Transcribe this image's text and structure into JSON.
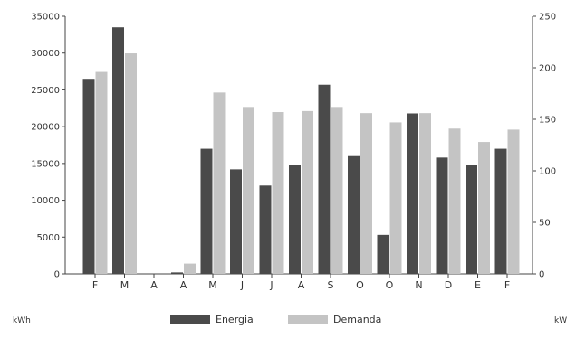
{
  "chart_data": {
    "type": "bar",
    "categories": [
      "F",
      "M",
      "A",
      "A",
      "M",
      "J",
      "J",
      "A",
      "S",
      "O",
      "O",
      "N",
      "D",
      "E",
      "F"
    ],
    "series": [
      {
        "name": "Energia",
        "axis": "left",
        "color": "#4a4a4a",
        "values": [
          26500,
          33500,
          0,
          200,
          17000,
          14200,
          12000,
          14800,
          25700,
          16000,
          5300,
          21800,
          15800,
          14800,
          17000
        ]
      },
      {
        "name": "Demanda",
        "axis": "right",
        "color": "#c4c4c4",
        "values": [
          196,
          214,
          0,
          10,
          176,
          162,
          157,
          158,
          162,
          156,
          147,
          156,
          141,
          128,
          140
        ]
      }
    ],
    "y_left": {
      "unit": "kWh",
      "ylim": [
        0,
        35000
      ],
      "ticks": [
        0,
        5000,
        10000,
        15000,
        20000,
        25000,
        30000,
        35000
      ]
    },
    "y_right": {
      "unit": "kW",
      "ylim": [
        0,
        250
      ],
      "ticks": [
        0,
        50,
        100,
        150,
        200,
        250
      ]
    },
    "grid": false,
    "legend": {
      "placement": "bottom-center",
      "entries": [
        "Energia",
        "Demanda"
      ]
    }
  }
}
